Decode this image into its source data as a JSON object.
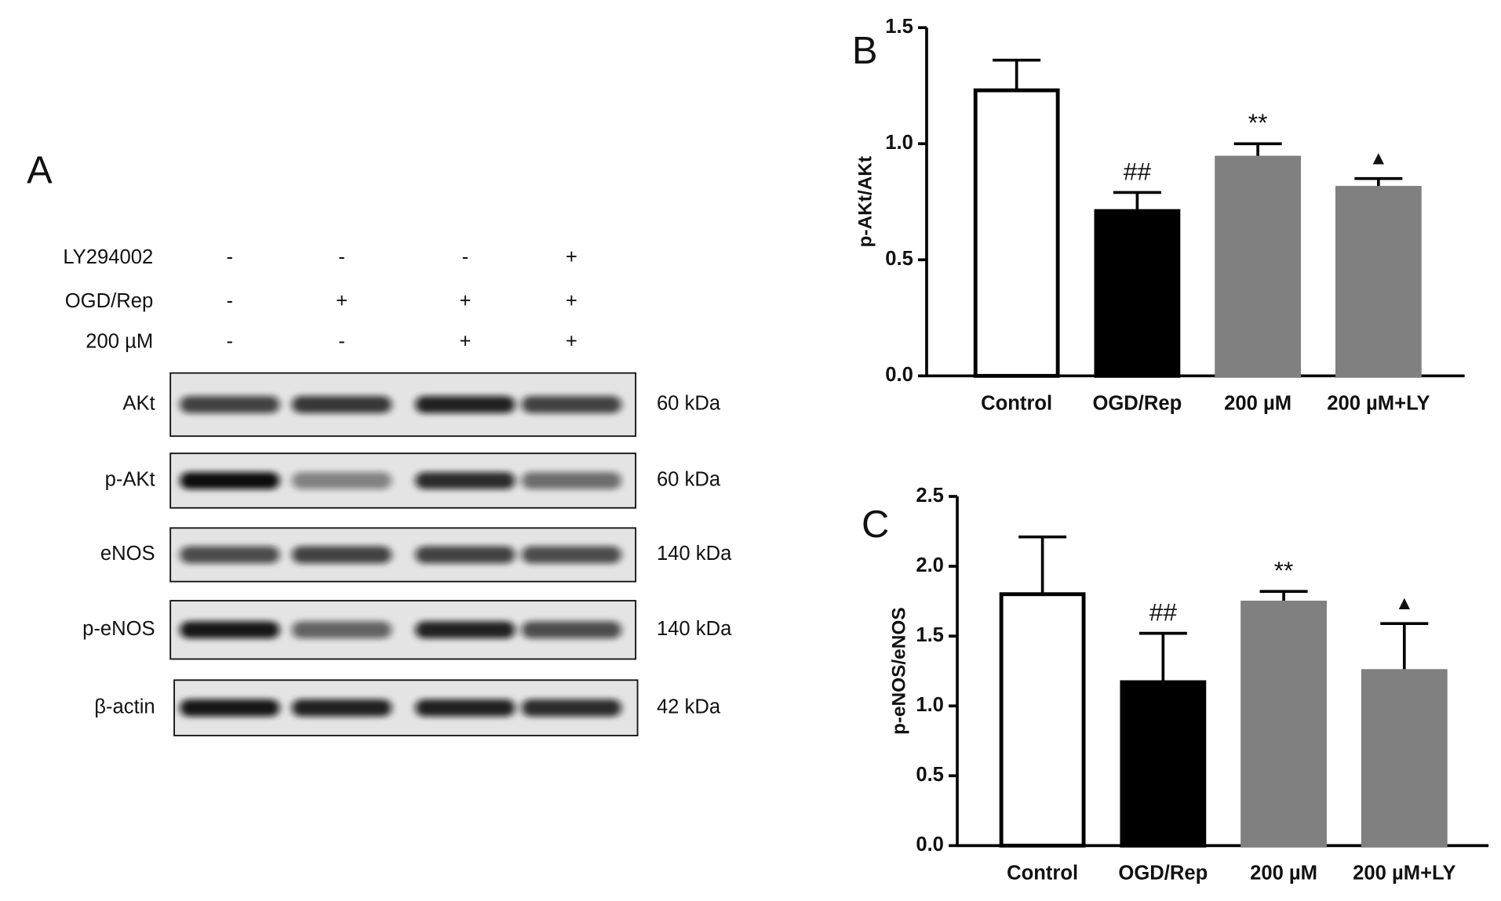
{
  "blot": {
    "panel_label": "A",
    "treatments": [
      {
        "name": "LY294002",
        "marks": [
          "-",
          "-",
          "-",
          "+"
        ]
      },
      {
        "name": "OGD/Rep",
        "marks": [
          "-",
          "+",
          "+",
          "+"
        ]
      },
      {
        "name": "200 µM",
        "marks": [
          "-",
          "-",
          "+",
          "+"
        ]
      }
    ],
    "bands": [
      {
        "name": "AKt",
        "size": "60 kDa"
      },
      {
        "name": "p-AKt",
        "size": "60 kDa"
      },
      {
        "name": "eNOS",
        "size": "140 kDa"
      },
      {
        "name": "p-eNOS",
        "size": "140 kDa"
      },
      {
        "name": "β-actin",
        "size": "42 kDa"
      }
    ]
  },
  "chart_data": [
    {
      "type": "bar",
      "panel_label": "B",
      "y_label": "p-AKt/AKt",
      "categories": [
        "Control",
        "OGD/Rep",
        "200 µM",
        "200 µM+LY"
      ],
      "values": [
        1.23,
        0.71,
        0.94,
        0.81
      ],
      "errors": [
        0.13,
        0.08,
        0.06,
        0.04
      ],
      "colors": [
        "#ffffff",
        "#000000",
        "#808080",
        "#808080"
      ],
      "annotations": [
        null,
        "##",
        "**",
        "▲"
      ],
      "ylim": [
        0,
        1.5
      ],
      "yticks": [
        {
          "value": 0,
          "label": "0.0"
        },
        0.5,
        {
          "value": 1,
          "label": "1.0"
        },
        1.5
      ]
    },
    {
      "type": "bar",
      "panel_label": "C",
      "y_label": "p-eNOS/eNOS",
      "categories": [
        "Control",
        "OGD/Rep",
        "200 µM",
        "200 µM+LY"
      ],
      "values": [
        1.8,
        1.17,
        1.74,
        1.25
      ],
      "errors": [
        0.41,
        0.35,
        0.08,
        0.34
      ],
      "colors": [
        "#ffffff",
        "#000000",
        "#808080",
        "#808080"
      ],
      "annotations": [
        null,
        "##",
        "**",
        "▲"
      ],
      "ylim": [
        0,
        2.5
      ],
      "yticks": [
        {
          "value": 0,
          "label": "0.0"
        },
        0.5,
        {
          "value": 1,
          "label": "1.0"
        },
        1.5,
        {
          "value": 2,
          "label": "2.0"
        },
        2.5
      ]
    }
  ]
}
